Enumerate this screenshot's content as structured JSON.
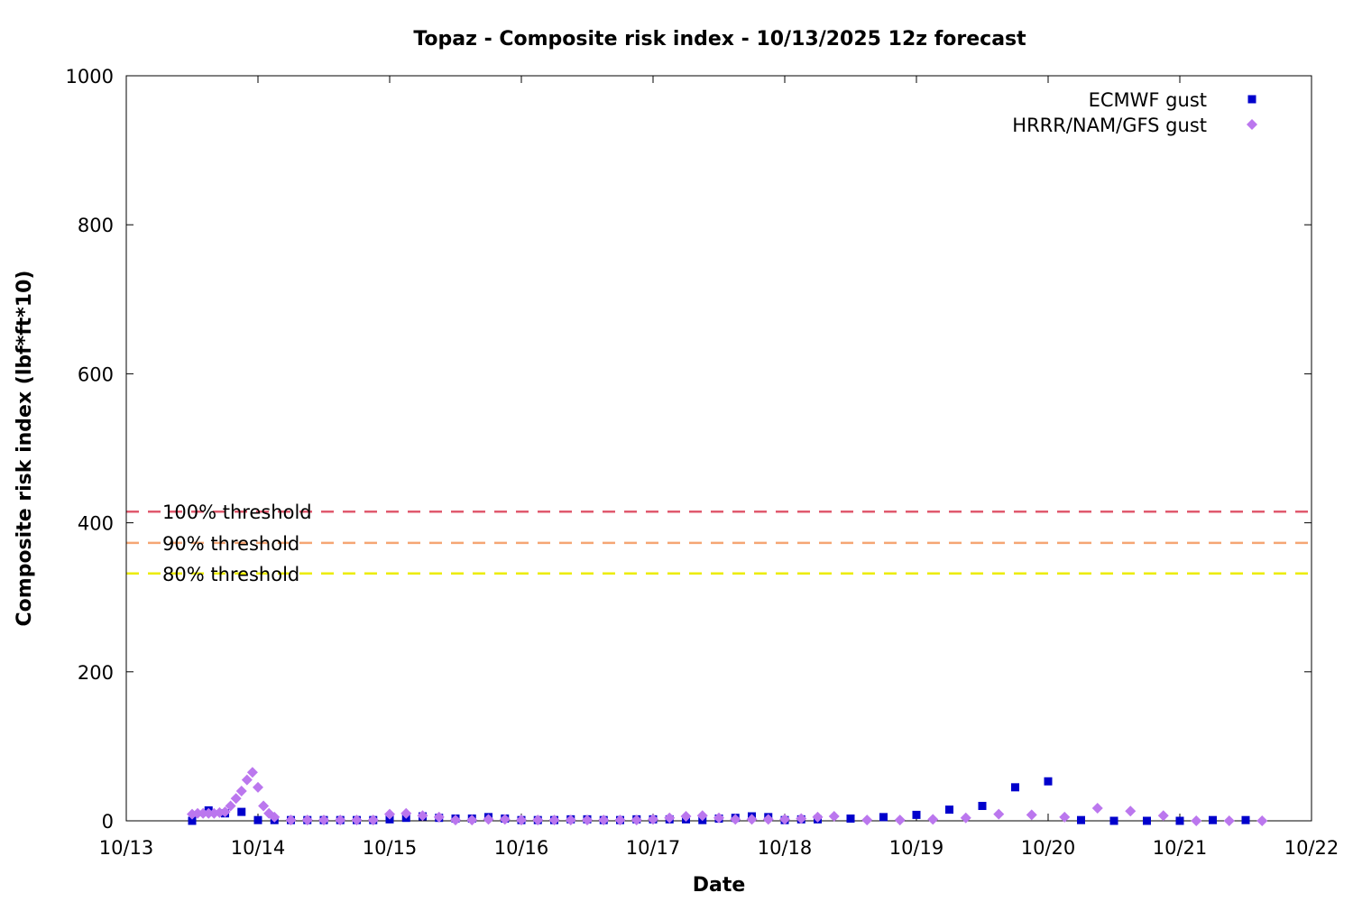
{
  "chart_data": {
    "type": "scatter",
    "title": "Topaz - Composite risk index - 10/13/2025 12z forecast",
    "xlabel": "Date",
    "ylabel": "Composite risk index (lbf*ft*10)",
    "xlim": [
      "2025-10-13",
      "2025-10-22"
    ],
    "ylim": [
      0,
      1000
    ],
    "x_ticks": [
      "10/13",
      "10/14",
      "10/15",
      "10/16",
      "10/17",
      "10/18",
      "10/19",
      "10/20",
      "10/21",
      "10/22"
    ],
    "y_ticks": [
      0,
      200,
      400,
      600,
      800,
      1000
    ],
    "legend_position": "top-right",
    "thresholds": [
      {
        "label": "100% threshold",
        "value": 415,
        "color": "#e05a6e"
      },
      {
        "label": "90% threshold",
        "value": 373,
        "color": "#f5a674"
      },
      {
        "label": "80% threshold",
        "value": 332,
        "color": "#ecec00"
      }
    ],
    "series": [
      {
        "name": "ECMWF gust",
        "marker": "square",
        "color": "#0000cc",
        "x": [
          "2025-10-13 12:00",
          "2025-10-13 15:00",
          "2025-10-13 18:00",
          "2025-10-13 21:00",
          "2025-10-14 00:00",
          "2025-10-14 03:00",
          "2025-10-14 06:00",
          "2025-10-14 09:00",
          "2025-10-14 12:00",
          "2025-10-14 15:00",
          "2025-10-14 18:00",
          "2025-10-14 21:00",
          "2025-10-15 00:00",
          "2025-10-15 03:00",
          "2025-10-15 06:00",
          "2025-10-15 09:00",
          "2025-10-15 12:00",
          "2025-10-15 15:00",
          "2025-10-15 18:00",
          "2025-10-15 21:00",
          "2025-10-16 00:00",
          "2025-10-16 03:00",
          "2025-10-16 06:00",
          "2025-10-16 09:00",
          "2025-10-16 12:00",
          "2025-10-16 15:00",
          "2025-10-16 18:00",
          "2025-10-16 21:00",
          "2025-10-17 00:00",
          "2025-10-17 03:00",
          "2025-10-17 06:00",
          "2025-10-17 09:00",
          "2025-10-17 12:00",
          "2025-10-17 15:00",
          "2025-10-17 18:00",
          "2025-10-17 21:00",
          "2025-10-18 00:00",
          "2025-10-18 03:00",
          "2025-10-18 06:00",
          "2025-10-18 12:00",
          "2025-10-18 18:00",
          "2025-10-19 00:00",
          "2025-10-19 06:00",
          "2025-10-19 12:00",
          "2025-10-19 18:00",
          "2025-10-20 00:00",
          "2025-10-20 06:00",
          "2025-10-20 12:00",
          "2025-10-20 18:00",
          "2025-10-21 00:00",
          "2025-10-21 06:00",
          "2025-10-21 12:00"
        ],
        "y": [
          0,
          14,
          10,
          12,
          1,
          1,
          1,
          1,
          1,
          1,
          1,
          1,
          2,
          4,
          6,
          4,
          3,
          3,
          5,
          3,
          1,
          1,
          1,
          2,
          2,
          1,
          1,
          2,
          2,
          2,
          2,
          1,
          3,
          4,
          6,
          5,
          1,
          2,
          2,
          3,
          5,
          8,
          15,
          20,
          45,
          53,
          1,
          0,
          0,
          0,
          1,
          1
        ]
      },
      {
        "name": "HRRR/NAM/GFS gust",
        "marker": "diamond",
        "color": "#bb77ee",
        "x": [
          "2025-10-13 12:00",
          "2025-10-13 13:00",
          "2025-10-13 14:00",
          "2025-10-13 15:00",
          "2025-10-13 16:00",
          "2025-10-13 17:00",
          "2025-10-13 18:00",
          "2025-10-13 19:00",
          "2025-10-13 20:00",
          "2025-10-13 21:00",
          "2025-10-13 22:00",
          "2025-10-13 23:00",
          "2025-10-14 00:00",
          "2025-10-14 01:00",
          "2025-10-14 02:00",
          "2025-10-14 03:00",
          "2025-10-14 06:00",
          "2025-10-14 09:00",
          "2025-10-14 12:00",
          "2025-10-14 15:00",
          "2025-10-14 18:00",
          "2025-10-14 21:00",
          "2025-10-15 00:00",
          "2025-10-15 03:00",
          "2025-10-15 06:00",
          "2025-10-15 09:00",
          "2025-10-15 12:00",
          "2025-10-15 15:00",
          "2025-10-15 18:00",
          "2025-10-15 21:00",
          "2025-10-16 00:00",
          "2025-10-16 03:00",
          "2025-10-16 06:00",
          "2025-10-16 09:00",
          "2025-10-16 12:00",
          "2025-10-16 15:00",
          "2025-10-16 18:00",
          "2025-10-16 21:00",
          "2025-10-17 00:00",
          "2025-10-17 03:00",
          "2025-10-17 06:00",
          "2025-10-17 09:00",
          "2025-10-17 12:00",
          "2025-10-17 15:00",
          "2025-10-17 18:00",
          "2025-10-17 21:00",
          "2025-10-18 00:00",
          "2025-10-18 03:00",
          "2025-10-18 06:00",
          "2025-10-18 09:00",
          "2025-10-18 15:00",
          "2025-10-18 21:00",
          "2025-10-19 03:00",
          "2025-10-19 09:00",
          "2025-10-19 15:00",
          "2025-10-19 21:00",
          "2025-10-20 03:00",
          "2025-10-20 09:00",
          "2025-10-20 15:00",
          "2025-10-20 21:00",
          "2025-10-21 03:00",
          "2025-10-21 09:00",
          "2025-10-21 15:00"
        ],
        "y": [
          9,
          10,
          10,
          10,
          10,
          11,
          12,
          20,
          30,
          40,
          55,
          65,
          45,
          20,
          10,
          5,
          1,
          1,
          1,
          1,
          1,
          1,
          9,
          10,
          7,
          5,
          1,
          1,
          2,
          2,
          1,
          1,
          1,
          1,
          1,
          1,
          1,
          1,
          2,
          4,
          6,
          7,
          4,
          2,
          2,
          2,
          2,
          3,
          5,
          6,
          1,
          1,
          2,
          4,
          9,
          8,
          5,
          17,
          13,
          7,
          0,
          0,
          0
        ]
      }
    ]
  }
}
